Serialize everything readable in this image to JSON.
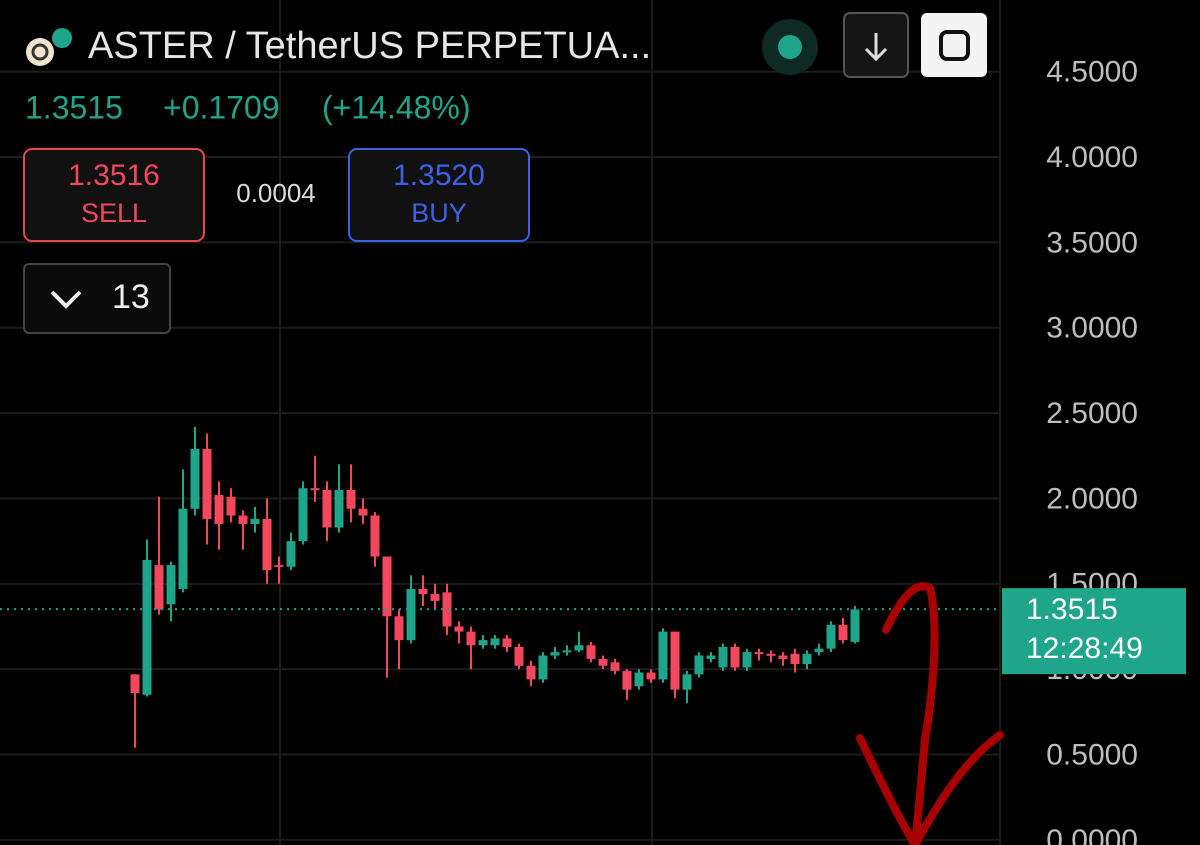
{
  "header": {
    "symbol": "ASTER / TetherUS PERPETUA...",
    "price": "1.3515",
    "change": "+0.1709",
    "change_pct": "(+14.48%)",
    "sell_price": "1.3516",
    "sell_label": "SELL",
    "spread": "0.0004",
    "buy_price": "1.3520",
    "buy_label": "BUY",
    "indicators": "13"
  },
  "chart_data": {
    "type": "candlestick",
    "open": [
      0.97,
      0.85,
      1.61,
      1.38,
      1.47,
      1.94,
      2.29,
      2.02,
      2.01,
      1.9,
      1.85,
      1.88,
      1.61,
      1.6,
      1.75,
      2.06,
      2.05,
      1.83,
      2.05,
      1.94,
      1.9,
      1.66,
      1.31,
      1.17,
      1.47,
      1.44,
      1.45,
      1.25,
      1.22,
      1.14,
      1.14,
      1.18,
      1.13,
      1.02,
      0.94,
      1.08,
      1.1,
      1.11,
      1.14,
      1.06,
      1.04,
      0.99,
      0.9,
      0.98,
      0.94,
      1.22,
      0.88,
      0.97,
      1.06,
      1.01,
      1.13,
      1.01,
      1.1,
      1.09,
      1.08,
      1.09,
      1.03,
      1.1,
      1.12,
      1.26,
      1.16
    ],
    "high": [
      0.97,
      1.76,
      2.01,
      1.63,
      2.17,
      2.42,
      2.38,
      2.1,
      2.06,
      1.93,
      1.95,
      2.0,
      1.66,
      1.8,
      2.1,
      2.25,
      2.1,
      2.2,
      2.2,
      2.0,
      1.92,
      1.66,
      1.35,
      1.55,
      1.55,
      1.5,
      1.5,
      1.28,
      1.25,
      1.2,
      1.2,
      1.2,
      1.15,
      1.05,
      1.1,
      1.13,
      1.14,
      1.22,
      1.16,
      1.08,
      1.06,
      1.0,
      1.0,
      1.0,
      1.24,
      1.22,
      0.99,
      1.1,
      1.1,
      1.15,
      1.15,
      1.12,
      1.12,
      1.11,
      1.1,
      1.12,
      1.11,
      1.15,
      1.28,
      1.3,
      1.37
    ],
    "low": [
      0.54,
      0.84,
      1.32,
      1.28,
      1.45,
      1.9,
      1.73,
      1.7,
      1.86,
      1.7,
      1.8,
      1.5,
      1.5,
      1.58,
      1.73,
      1.98,
      1.75,
      1.8,
      1.86,
      1.85,
      1.6,
      0.95,
      1.0,
      1.15,
      1.37,
      1.35,
      1.2,
      1.15,
      1.0,
      1.12,
      1.12,
      1.1,
      1.0,
      0.9,
      0.92,
      1.06,
      1.08,
      1.1,
      1.04,
      1.0,
      0.97,
      0.82,
      0.88,
      0.92,
      0.92,
      0.83,
      0.8,
      0.95,
      1.04,
      0.99,
      0.99,
      0.99,
      1.05,
      1.04,
      1.02,
      0.98,
      1.0,
      1.08,
      1.1,
      1.15,
      1.15
    ],
    "close": [
      0.86,
      1.64,
      1.35,
      1.61,
      1.94,
      2.29,
      1.88,
      1.85,
      1.9,
      1.85,
      1.88,
      1.58,
      1.6,
      1.75,
      2.06,
      2.05,
      1.83,
      2.05,
      1.94,
      1.9,
      1.66,
      1.31,
      1.17,
      1.47,
      1.44,
      1.4,
      1.25,
      1.22,
      1.14,
      1.17,
      1.18,
      1.13,
      1.02,
      0.94,
      1.08,
      1.1,
      1.11,
      1.14,
      1.06,
      1.02,
      0.99,
      0.88,
      0.98,
      0.94,
      1.22,
      0.88,
      0.97,
      1.08,
      1.08,
      1.13,
      1.01,
      1.1,
      1.09,
      1.08,
      1.06,
      1.03,
      1.09,
      1.12,
      1.26,
      1.17,
      1.35
    ],
    "up_color": "#1ea58a",
    "down_color": "#f2475c",
    "ylim": [
      -0.03,
      4.92
    ],
    "yticks": [
      {
        "value": 0,
        "label": "0.0000"
      },
      {
        "value": 0.5,
        "label": "0.5000"
      },
      {
        "value": 1,
        "label": "1.0000"
      },
      {
        "value": 1.5,
        "label": "1.5000"
      },
      {
        "value": 2,
        "label": "2.0000"
      },
      {
        "value": 2.5,
        "label": "2.5000"
      },
      {
        "value": 3,
        "label": "3.0000"
      },
      {
        "value": 3.5,
        "label": "3.5000"
      },
      {
        "value": 4,
        "label": "4.0000"
      },
      {
        "value": 4.5,
        "label": "4.5000"
      }
    ],
    "grid": true,
    "last_price": 1.3515,
    "countdown": "12:28:49"
  }
}
